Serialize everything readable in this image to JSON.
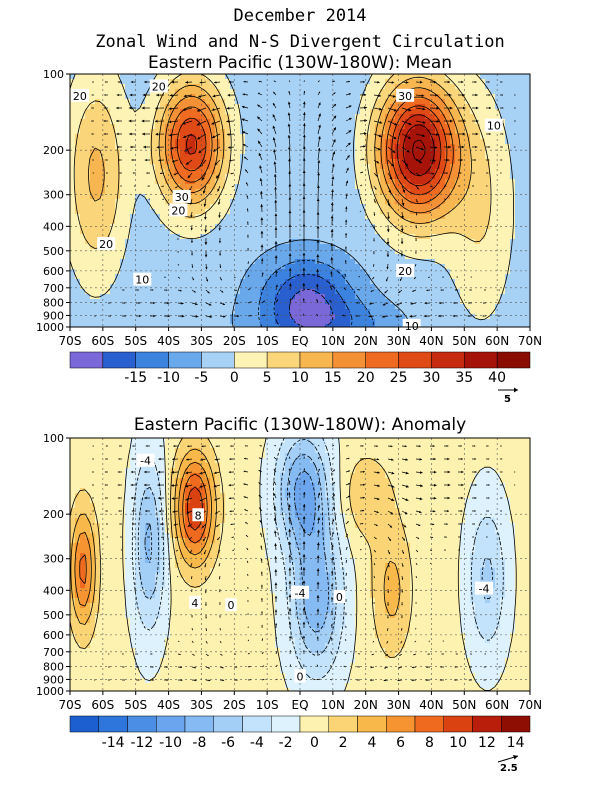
{
  "page": {
    "title_line1": "December 2014",
    "title_line2": "Zonal Wind and N-S Divergent Circulation",
    "colors": {
      "background": "#ffffff",
      "axis": "#000000",
      "contour": "#000000",
      "vector": "#000000"
    }
  },
  "chart_data": [
    {
      "type": "heatmap",
      "title": "Eastern Pacific (130W-180W): Mean",
      "x_tick_labels": [
        "70S",
        "60S",
        "50S",
        "40S",
        "30S",
        "20S",
        "10S",
        "EQ",
        "10N",
        "20N",
        "30N",
        "40N",
        "50N",
        "60N",
        "70N"
      ],
      "xlim": [
        -70,
        70
      ],
      "y_tick_labels": [
        "100",
        "200",
        "300",
        "400",
        "500",
        "600",
        "700",
        "800",
        "900",
        "1000"
      ],
      "ylim": [
        1000,
        100
      ],
      "y_scale": "log",
      "grid": true,
      "contour_labels": [
        {
          "text": "20",
          "x": -67,
          "y": 122
        },
        {
          "text": "20",
          "x": -43,
          "y": 112
        },
        {
          "text": "30",
          "x": -36,
          "y": 306
        },
        {
          "text": "20",
          "x": -37,
          "y": 346
        },
        {
          "text": "20",
          "x": -59,
          "y": 470
        },
        {
          "text": "10",
          "x": -48,
          "y": 650
        },
        {
          "text": "30",
          "x": 32,
          "y": 122
        },
        {
          "text": "10",
          "x": 59,
          "y": 160
        },
        {
          "text": "20",
          "x": 32,
          "y": 600
        },
        {
          "text": "10",
          "x": 34,
          "y": 990
        }
      ],
      "colorbar": {
        "labels": [
          "-15",
          "-10",
          "-5",
          "0",
          "5",
          "10",
          "15",
          "20",
          "25",
          "30",
          "35",
          "40"
        ],
        "colors": [
          "#7b68d8",
          "#2a5fcf",
          "#3c83e0",
          "#6aa8ec",
          "#a8d2f5",
          "#fdf3b5",
          "#fbd57a",
          "#f7b64f",
          "#f49137",
          "#ef6b22",
          "#e04a16",
          "#c62b10",
          "#a61308",
          "#8a0d04"
        ]
      },
      "vector_reference": "5"
    },
    {
      "type": "heatmap",
      "title": "Eastern Pacific (130W-180W): Anomaly",
      "x_tick_labels": [
        "70S",
        "60S",
        "50S",
        "40S",
        "30S",
        "20S",
        "10S",
        "EQ",
        "10N",
        "20N",
        "30N",
        "40N",
        "50N",
        "60N",
        "70N"
      ],
      "xlim": [
        -70,
        70
      ],
      "y_tick_labels": [
        "100",
        "200",
        "300",
        "400",
        "500",
        "600",
        "700",
        "800",
        "900",
        "1000"
      ],
      "ylim": [
        1000,
        100
      ],
      "y_scale": "log",
      "grid": true,
      "contour_labels": [
        {
          "text": "-4",
          "x": -47,
          "y": 123
        },
        {
          "text": "8",
          "x": -31,
          "y": 202
        },
        {
          "text": "-4",
          "x": 0,
          "y": 409
        },
        {
          "text": "4",
          "x": -32,
          "y": 448
        },
        {
          "text": "0",
          "x": -21,
          "y": 458
        },
        {
          "text": "0",
          "x": 12,
          "y": 425
        },
        {
          "text": "-4",
          "x": 56,
          "y": 394
        },
        {
          "text": "0",
          "x": 0,
          "y": 875
        }
      ],
      "colorbar": {
        "labels": [
          "-14",
          "-12",
          "-10",
          "-8",
          "-6",
          "-4",
          "-2",
          "0",
          "2",
          "4",
          "6",
          "8",
          "10",
          "12",
          "14"
        ],
        "colors": [
          "#1c5fd0",
          "#2f76dc",
          "#4b8ee6",
          "#6aa5ee",
          "#86baf2",
          "#a3cff7",
          "#c2e3fb",
          "#ddf2fc",
          "#fdf2b0",
          "#fbd575",
          "#f8b84a",
          "#f59431",
          "#ef6a1e",
          "#db4212",
          "#b91e0a",
          "#8e0e04"
        ]
      },
      "vector_reference": "2.5"
    }
  ]
}
